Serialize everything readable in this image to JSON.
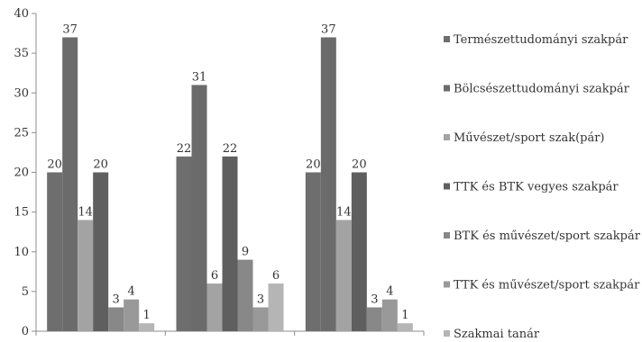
{
  "chart_data": {
    "type": "bar",
    "categories": [
      "",
      "",
      ""
    ],
    "ylim": [
      0,
      40
    ],
    "yticks": [
      0,
      5,
      10,
      15,
      20,
      25,
      30,
      35,
      40
    ],
    "grid": false,
    "legend_position": "right",
    "series": [
      {
        "name": "Természettudományi szakpár",
        "values": [
          20,
          22,
          20
        ],
        "color": "#6e6e6e"
      },
      {
        "name": "Bölcsészettudományi szakpár",
        "values": [
          37,
          31,
          37
        ],
        "color": "#6b6b6b"
      },
      {
        "name": "Művészet/sport szak(pár)",
        "values": [
          14,
          6,
          14
        ],
        "color": "#a3a3a3"
      },
      {
        "name": "TTK és BTK vegyes szakpár",
        "values": [
          20,
          22,
          20
        ],
        "color": "#5f5f5f"
      },
      {
        "name": "BTK és művészet/sport szakpár",
        "values": [
          3,
          9,
          3
        ],
        "color": "#888888"
      },
      {
        "name": "TTK és művészet/sport szakpár",
        "values": [
          4,
          3,
          4
        ],
        "color": "#999999"
      },
      {
        "name": "Szakmai tanár",
        "values": [
          1,
          6,
          1
        ],
        "color": "#b5b5b5"
      }
    ]
  }
}
